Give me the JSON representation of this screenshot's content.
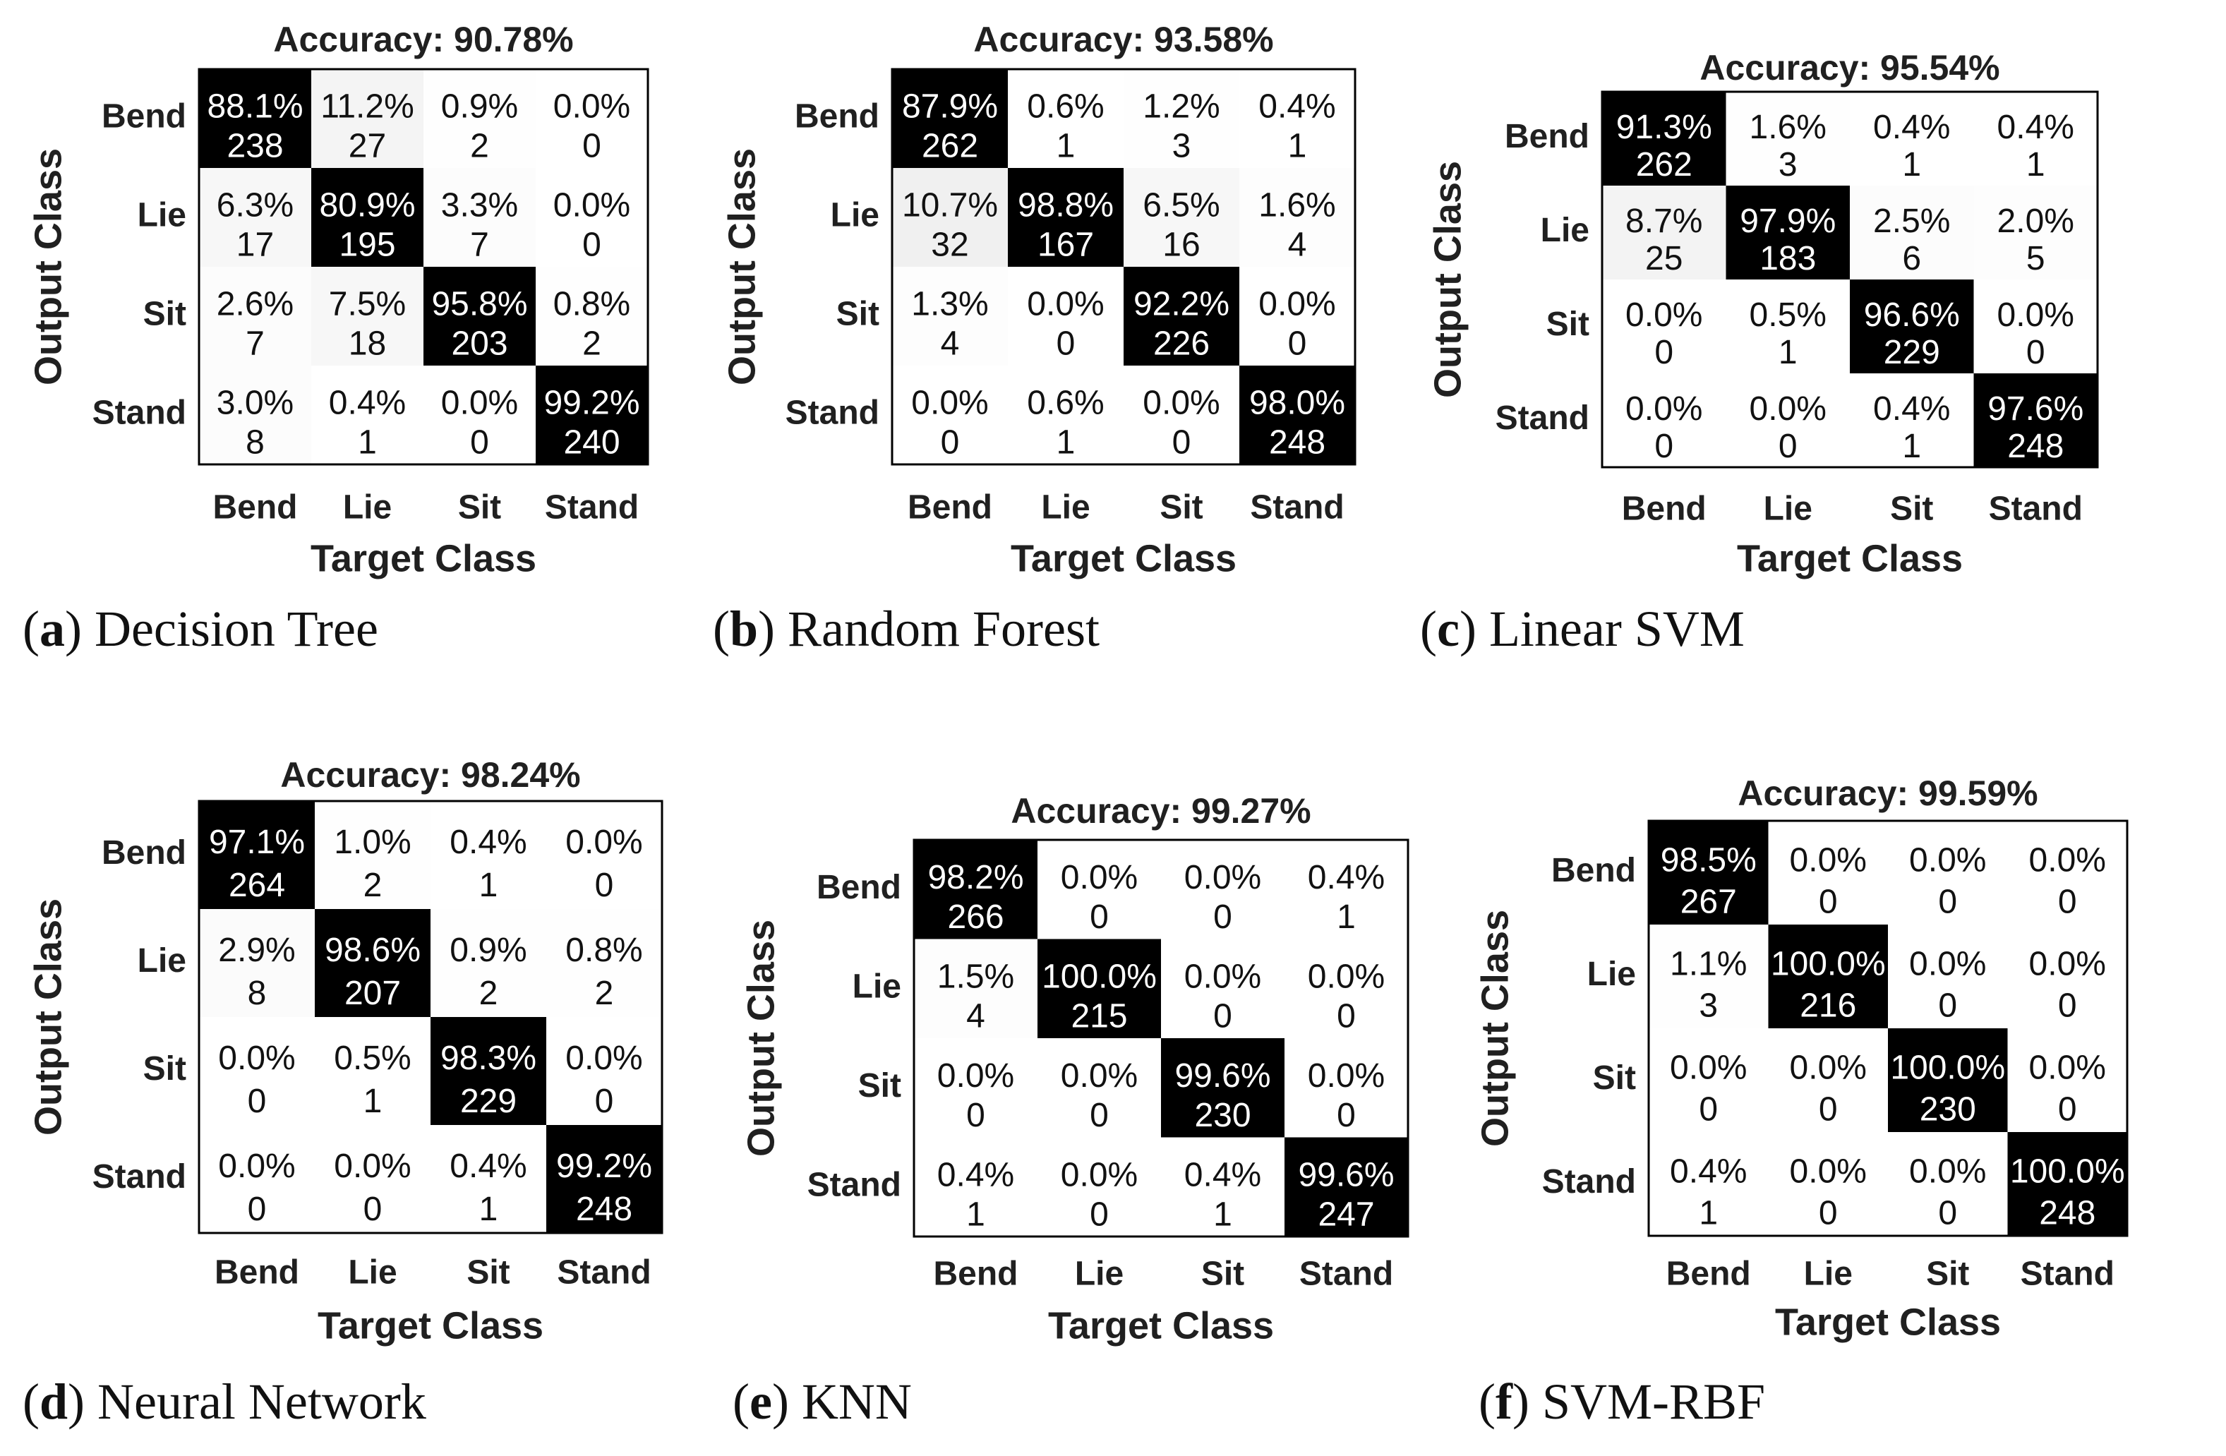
{
  "chart_data": [
    {
      "type": "heatmap",
      "title": "Accuracy: 90.78%",
      "caption_letter": "a",
      "caption_name": "Decision Tree",
      "xlabel": "Target Class",
      "ylabel": "Output Class",
      "x_categories": [
        "Bend",
        "Lie",
        "Sit",
        "Stand"
      ],
      "y_categories": [
        "Bend",
        "Lie",
        "Sit",
        "Stand"
      ],
      "percent_labels": [
        [
          "88.1%",
          "11.2%",
          "0.9%",
          "0.0%"
        ],
        [
          "6.3%",
          "80.9%",
          "3.3%",
          "0.0%"
        ],
        [
          "2.6%",
          "7.5%",
          "95.8%",
          "0.8%"
        ],
        [
          "3.0%",
          "0.4%",
          "0.0%",
          "99.2%"
        ]
      ],
      "counts": [
        [
          238,
          27,
          2,
          0
        ],
        [
          17,
          195,
          7,
          0
        ],
        [
          7,
          18,
          203,
          2
        ],
        [
          8,
          1,
          0,
          240
        ]
      ]
    },
    {
      "type": "heatmap",
      "title": "Accuracy: 93.58%",
      "caption_letter": "b",
      "caption_name": "Random Forest",
      "xlabel": "Target Class",
      "ylabel": "Output Class",
      "x_categories": [
        "Bend",
        "Lie",
        "Sit",
        "Stand"
      ],
      "y_categories": [
        "Bend",
        "Lie",
        "Sit",
        "Stand"
      ],
      "percent_labels": [
        [
          "87.9%",
          "0.6%",
          "1.2%",
          "0.4%"
        ],
        [
          "10.7%",
          "98.8%",
          "6.5%",
          "1.6%"
        ],
        [
          "1.3%",
          "0.0%",
          "92.2%",
          "0.0%"
        ],
        [
          "0.0%",
          "0.6%",
          "0.0%",
          "98.0%"
        ]
      ],
      "counts": [
        [
          262,
          1,
          3,
          1
        ],
        [
          32,
          167,
          16,
          4
        ],
        [
          4,
          0,
          226,
          0
        ],
        [
          0,
          1,
          0,
          248
        ]
      ]
    },
    {
      "type": "heatmap",
      "title": "Accuracy: 95.54%",
      "caption_letter": "c",
      "caption_name": "Linear SVM",
      "xlabel": "Target Class",
      "ylabel": "Output Class",
      "x_categories": [
        "Bend",
        "Lie",
        "Sit",
        "Stand"
      ],
      "y_categories": [
        "Bend",
        "Lie",
        "Sit",
        "Stand"
      ],
      "percent_labels": [
        [
          "91.3%",
          "1.6%",
          "0.4%",
          "0.4%"
        ],
        [
          "8.7%",
          "97.9%",
          "2.5%",
          "2.0%"
        ],
        [
          "0.0%",
          "0.5%",
          "96.6%",
          "0.0%"
        ],
        [
          "0.0%",
          "0.0%",
          "0.4%",
          "97.6%"
        ]
      ],
      "counts": [
        [
          262,
          3,
          1,
          1
        ],
        [
          25,
          183,
          6,
          5
        ],
        [
          0,
          1,
          229,
          0
        ],
        [
          0,
          0,
          1,
          248
        ]
      ]
    },
    {
      "type": "heatmap",
      "title": "Accuracy: 98.24%",
      "caption_letter": "d",
      "caption_name": "Neural Network",
      "xlabel": "Target Class",
      "ylabel": "Output Class",
      "x_categories": [
        "Bend",
        "Lie",
        "Sit",
        "Stand"
      ],
      "y_categories": [
        "Bend",
        "Lie",
        "Sit",
        "Stand"
      ],
      "percent_labels": [
        [
          "97.1%",
          "1.0%",
          "0.4%",
          "0.0%"
        ],
        [
          "2.9%",
          "98.6%",
          "0.9%",
          "0.8%"
        ],
        [
          "0.0%",
          "0.5%",
          "98.3%",
          "0.0%"
        ],
        [
          "0.0%",
          "0.0%",
          "0.4%",
          "99.2%"
        ]
      ],
      "counts": [
        [
          264,
          2,
          1,
          0
        ],
        [
          8,
          207,
          2,
          2
        ],
        [
          0,
          1,
          229,
          0
        ],
        [
          0,
          0,
          1,
          248
        ]
      ]
    },
    {
      "type": "heatmap",
      "title": "Accuracy: 99.27%",
      "caption_letter": "e",
      "caption_name": "KNN",
      "xlabel": "Target Class",
      "ylabel": "Output Class",
      "x_categories": [
        "Bend",
        "Lie",
        "Sit",
        "Stand"
      ],
      "y_categories": [
        "Bend",
        "Lie",
        "Sit",
        "Stand"
      ],
      "percent_labels": [
        [
          "98.2%",
          "0.0%",
          "0.0%",
          "0.4%"
        ],
        [
          "1.5%",
          "100.0%",
          "0.0%",
          "0.0%"
        ],
        [
          "0.0%",
          "0.0%",
          "99.6%",
          "0.0%"
        ],
        [
          "0.4%",
          "0.0%",
          "0.4%",
          "99.6%"
        ]
      ],
      "counts": [
        [
          266,
          0,
          0,
          1
        ],
        [
          4,
          215,
          0,
          0
        ],
        [
          0,
          0,
          230,
          0
        ],
        [
          1,
          0,
          1,
          247
        ]
      ]
    },
    {
      "type": "heatmap",
      "title": "Accuracy: 99.59%",
      "caption_letter": "f",
      "caption_name": "SVM-RBF",
      "xlabel": "Target Class",
      "ylabel": "Output Class",
      "x_categories": [
        "Bend",
        "Lie",
        "Sit",
        "Stand"
      ],
      "y_categories": [
        "Bend",
        "Lie",
        "Sit",
        "Stand"
      ],
      "percent_labels": [
        [
          "98.5%",
          "0.0%",
          "0.0%",
          "0.0%"
        ],
        [
          "1.1%",
          "100.0%",
          "0.0%",
          "0.0%"
        ],
        [
          "0.0%",
          "0.0%",
          "100.0%",
          "0.0%"
        ],
        [
          "0.4%",
          "0.0%",
          "0.0%",
          "100.0%"
        ]
      ],
      "counts": [
        [
          267,
          0,
          0,
          0
        ],
        [
          3,
          216,
          0,
          0
        ],
        [
          0,
          0,
          230,
          0
        ],
        [
          1,
          0,
          0,
          248
        ]
      ]
    }
  ]
}
